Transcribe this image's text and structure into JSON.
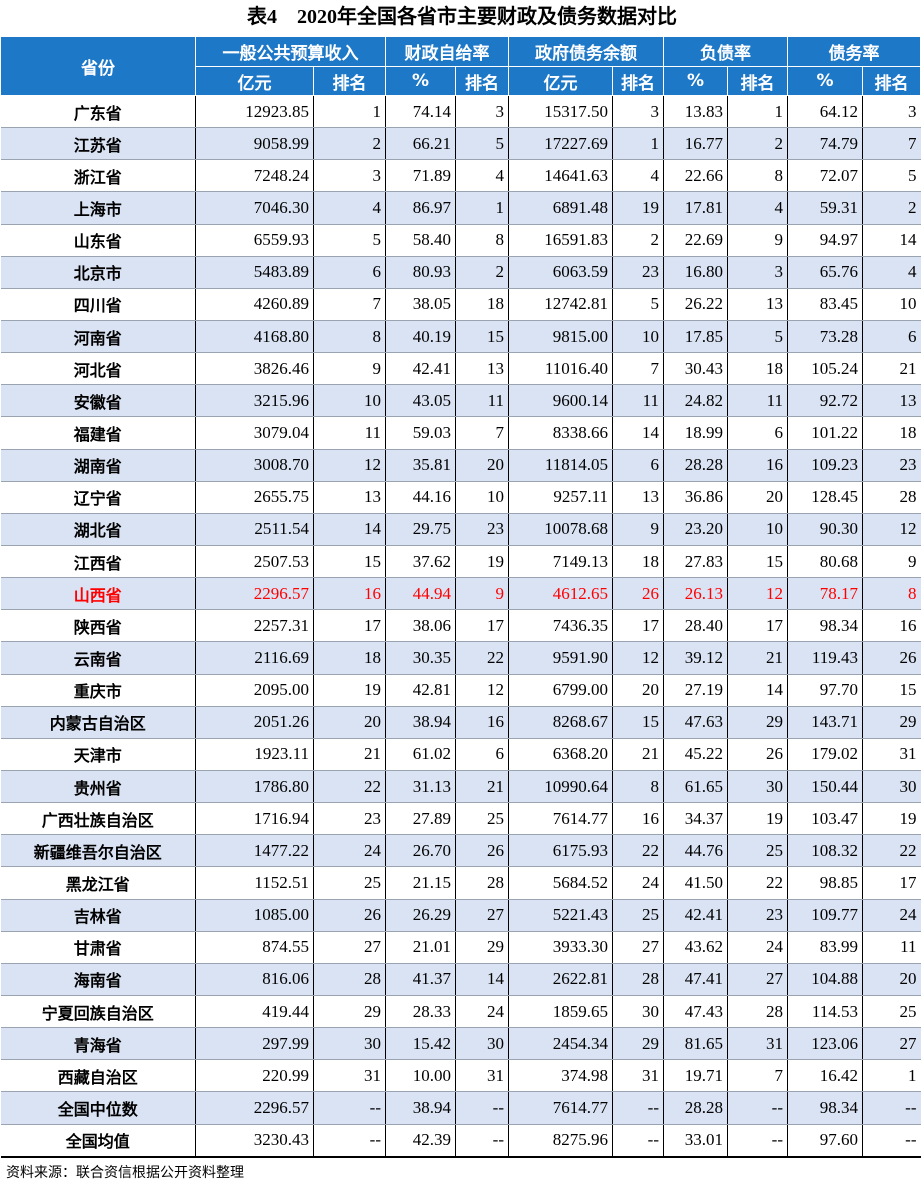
{
  "title": "表4　2020年全国各省市主要财政及债务数据对比",
  "header": {
    "province": "省份",
    "groups": [
      "一般公共预算收入",
      "财政自给率",
      "政府债务余额",
      "负债率",
      "债务率"
    ],
    "sub": [
      "亿元",
      "排名",
      "%",
      "排名",
      "亿元",
      "排名",
      "%",
      "排名",
      "%",
      "排名"
    ]
  },
  "highlight_color": "#ff0000",
  "header_color": "#1e78c8",
  "stripe_color": "#dae3f3",
  "rows": [
    [
      "广东省",
      "12923.85",
      "1",
      "74.14",
      "3",
      "15317.50",
      "3",
      "13.83",
      "1",
      "64.12",
      "3"
    ],
    [
      "江苏省",
      "9058.99",
      "2",
      "66.21",
      "5",
      "17227.69",
      "1",
      "16.77",
      "2",
      "74.79",
      "7"
    ],
    [
      "浙江省",
      "7248.24",
      "3",
      "71.89",
      "4",
      "14641.63",
      "4",
      "22.66",
      "8",
      "72.07",
      "5"
    ],
    [
      "上海市",
      "7046.30",
      "4",
      "86.97",
      "1",
      "6891.48",
      "19",
      "17.81",
      "4",
      "59.31",
      "2"
    ],
    [
      "山东省",
      "6559.93",
      "5",
      "58.40",
      "8",
      "16591.83",
      "2",
      "22.69",
      "9",
      "94.97",
      "14"
    ],
    [
      "北京市",
      "5483.89",
      "6",
      "80.93",
      "2",
      "6063.59",
      "23",
      "16.80",
      "3",
      "65.76",
      "4"
    ],
    [
      "四川省",
      "4260.89",
      "7",
      "38.05",
      "18",
      "12742.81",
      "5",
      "26.22",
      "13",
      "83.45",
      "10"
    ],
    [
      "河南省",
      "4168.80",
      "8",
      "40.19",
      "15",
      "9815.00",
      "10",
      "17.85",
      "5",
      "73.28",
      "6"
    ],
    [
      "河北省",
      "3826.46",
      "9",
      "42.41",
      "13",
      "11016.40",
      "7",
      "30.43",
      "18",
      "105.24",
      "21"
    ],
    [
      "安徽省",
      "3215.96",
      "10",
      "43.05",
      "11",
      "9600.14",
      "11",
      "24.82",
      "11",
      "92.72",
      "13"
    ],
    [
      "福建省",
      "3079.04",
      "11",
      "59.03",
      "7",
      "8338.66",
      "14",
      "18.99",
      "6",
      "101.22",
      "18"
    ],
    [
      "湖南省",
      "3008.70",
      "12",
      "35.81",
      "20",
      "11814.05",
      "6",
      "28.28",
      "16",
      "109.23",
      "23"
    ],
    [
      "辽宁省",
      "2655.75",
      "13",
      "44.16",
      "10",
      "9257.11",
      "13",
      "36.86",
      "20",
      "128.45",
      "28"
    ],
    [
      "湖北省",
      "2511.54",
      "14",
      "29.75",
      "23",
      "10078.68",
      "9",
      "23.20",
      "10",
      "90.30",
      "12"
    ],
    [
      "江西省",
      "2507.53",
      "15",
      "37.62",
      "19",
      "7149.13",
      "18",
      "27.83",
      "15",
      "80.68",
      "9"
    ],
    [
      "山西省",
      "2296.57",
      "16",
      "44.94",
      "9",
      "4612.65",
      "26",
      "26.13",
      "12",
      "78.17",
      "8"
    ],
    [
      "陕西省",
      "2257.31",
      "17",
      "38.06",
      "17",
      "7436.35",
      "17",
      "28.40",
      "17",
      "98.34",
      "16"
    ],
    [
      "云南省",
      "2116.69",
      "18",
      "30.35",
      "22",
      "9591.90",
      "12",
      "39.12",
      "21",
      "119.43",
      "26"
    ],
    [
      "重庆市",
      "2095.00",
      "19",
      "42.81",
      "12",
      "6799.00",
      "20",
      "27.19",
      "14",
      "97.70",
      "15"
    ],
    [
      "内蒙古自治区",
      "2051.26",
      "20",
      "38.94",
      "16",
      "8268.67",
      "15",
      "47.63",
      "29",
      "143.71",
      "29"
    ],
    [
      "天津市",
      "1923.11",
      "21",
      "61.02",
      "6",
      "6368.20",
      "21",
      "45.22",
      "26",
      "179.02",
      "31"
    ],
    [
      "贵州省",
      "1786.80",
      "22",
      "31.13",
      "21",
      "10990.64",
      "8",
      "61.65",
      "30",
      "150.44",
      "30"
    ],
    [
      "广西壮族自治区",
      "1716.94",
      "23",
      "27.89",
      "25",
      "7614.77",
      "16",
      "34.37",
      "19",
      "103.47",
      "19"
    ],
    [
      "新疆维吾尔自治区",
      "1477.22",
      "24",
      "26.70",
      "26",
      "6175.93",
      "22",
      "44.76",
      "25",
      "108.32",
      "22"
    ],
    [
      "黑龙江省",
      "1152.51",
      "25",
      "21.15",
      "28",
      "5684.52",
      "24",
      "41.50",
      "22",
      "98.85",
      "17"
    ],
    [
      "吉林省",
      "1085.00",
      "26",
      "26.29",
      "27",
      "5221.43",
      "25",
      "42.41",
      "23",
      "109.77",
      "24"
    ],
    [
      "甘肃省",
      "874.55",
      "27",
      "21.01",
      "29",
      "3933.30",
      "27",
      "43.62",
      "24",
      "83.99",
      "11"
    ],
    [
      "海南省",
      "816.06",
      "28",
      "41.37",
      "14",
      "2622.81",
      "28",
      "47.41",
      "27",
      "104.88",
      "20"
    ],
    [
      "宁夏回族自治区",
      "419.44",
      "29",
      "28.33",
      "24",
      "1859.65",
      "30",
      "47.43",
      "28",
      "114.53",
      "25"
    ],
    [
      "青海省",
      "297.99",
      "30",
      "15.42",
      "30",
      "2454.34",
      "29",
      "81.65",
      "31",
      "123.06",
      "27"
    ],
    [
      "西藏自治区",
      "220.99",
      "31",
      "10.00",
      "31",
      "374.98",
      "31",
      "19.71",
      "7",
      "16.42",
      "1"
    ],
    [
      "全国中位数",
      "2296.57",
      "--",
      "38.94",
      "--",
      "7614.77",
      "--",
      "28.28",
      "--",
      "98.34",
      "--"
    ],
    [
      "全国均值",
      "3230.43",
      "--",
      "42.39",
      "--",
      "8275.96",
      "--",
      "33.01",
      "--",
      "97.60",
      "--"
    ]
  ],
  "highlight_row": "山西省",
  "source": "资料来源：联合资信根据公开资料整理"
}
